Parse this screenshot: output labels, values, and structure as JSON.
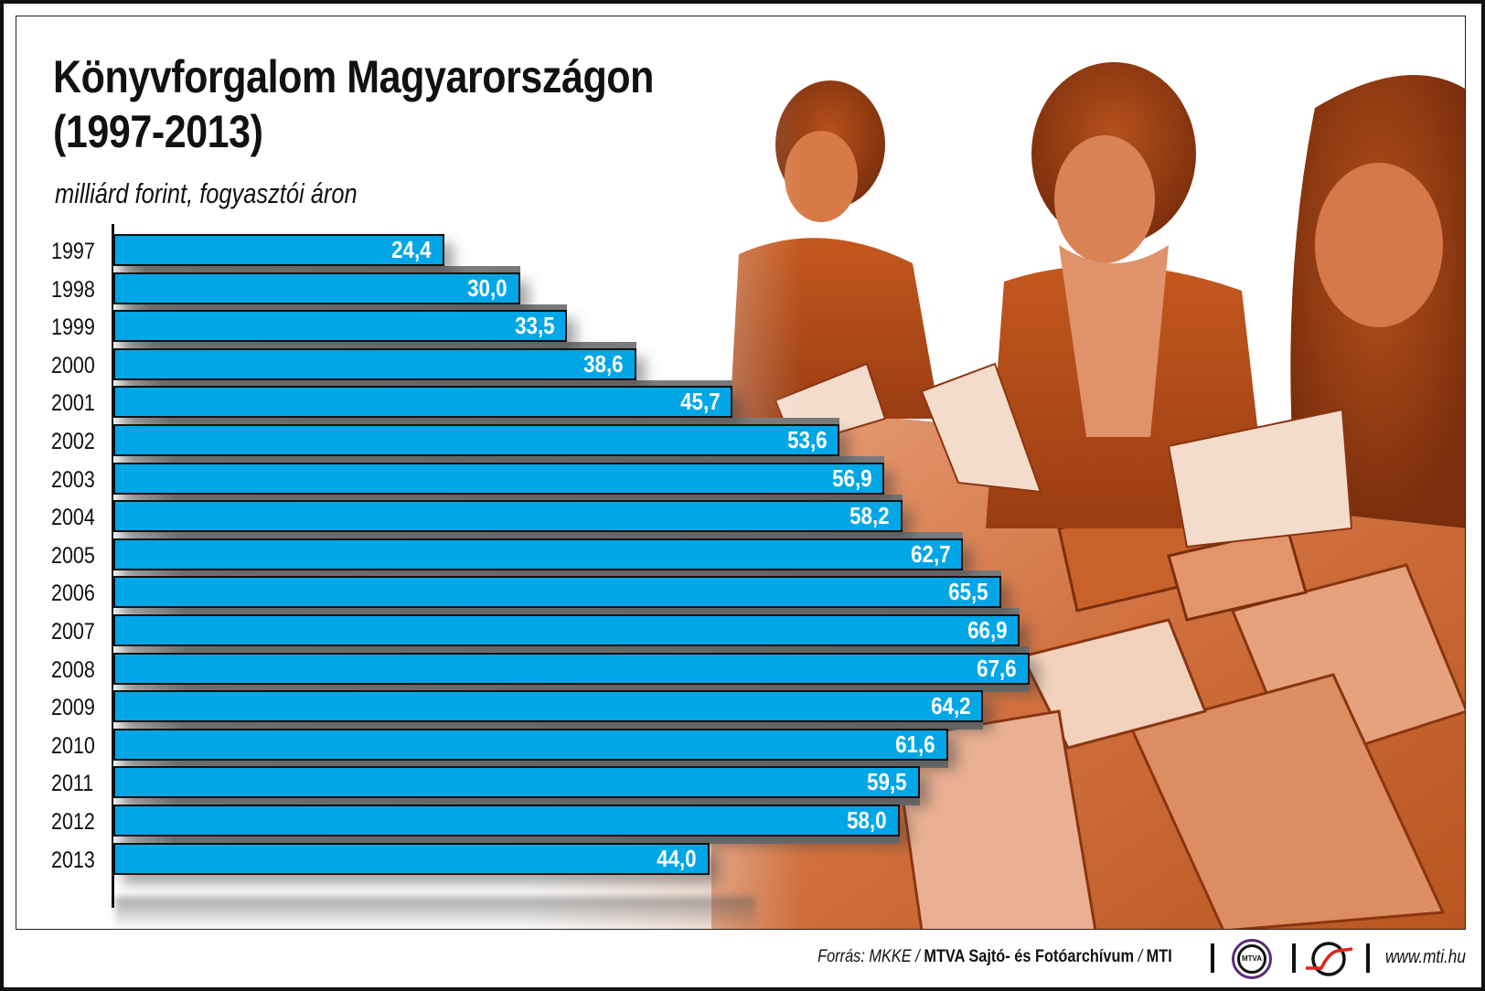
{
  "header": {
    "title_line1": "Könyvforgalom Magyarországon",
    "title_line2": "(1997-2013)",
    "subtitle": "milliárd forint, fogyasztói áron"
  },
  "colors": {
    "bar": "#00a6e6",
    "bar_border": "#111111",
    "value_text": "#ffffff",
    "photo_tint": "#c8561c",
    "mtva_ring": "#5a2a7a",
    "mti_red": "#e2231a"
  },
  "chart_data": {
    "type": "bar",
    "orientation": "horizontal",
    "title": "Könyvforgalom Magyarországon (1997-2013)",
    "subtitle": "milliárd forint, fogyasztói áron",
    "xlabel": "",
    "ylabel": "",
    "categories": [
      "1997",
      "1998",
      "1999",
      "2000",
      "2001",
      "2002",
      "2003",
      "2004",
      "2005",
      "2006",
      "2007",
      "2008",
      "2009",
      "2010",
      "2011",
      "2012",
      "2013"
    ],
    "values": [
      24.4,
      30.0,
      33.5,
      38.6,
      45.7,
      53.6,
      56.9,
      58.2,
      62.7,
      65.5,
      66.9,
      67.6,
      64.2,
      61.6,
      59.5,
      58.0,
      44.0
    ],
    "value_labels": [
      "24,4",
      "30,0",
      "33,5",
      "38,6",
      "45,7",
      "53,6",
      "56,9",
      "58,2",
      "62,7",
      "65,5",
      "66,9",
      "67,6",
      "64,2",
      "61,6",
      "59,5",
      "58,0",
      "44,0"
    ],
    "grid": false,
    "legend": "none",
    "xlim": [
      0,
      70
    ]
  },
  "footer": {
    "source_prefix": "Forrás: MKKE / ",
    "source_bold": "MTVA Sajtó- és Fotóarchívum",
    "source_sep": " / ",
    "source_mti": "MTI",
    "mtva_logo_text": "MTVA",
    "url": "www.mti.hu"
  }
}
